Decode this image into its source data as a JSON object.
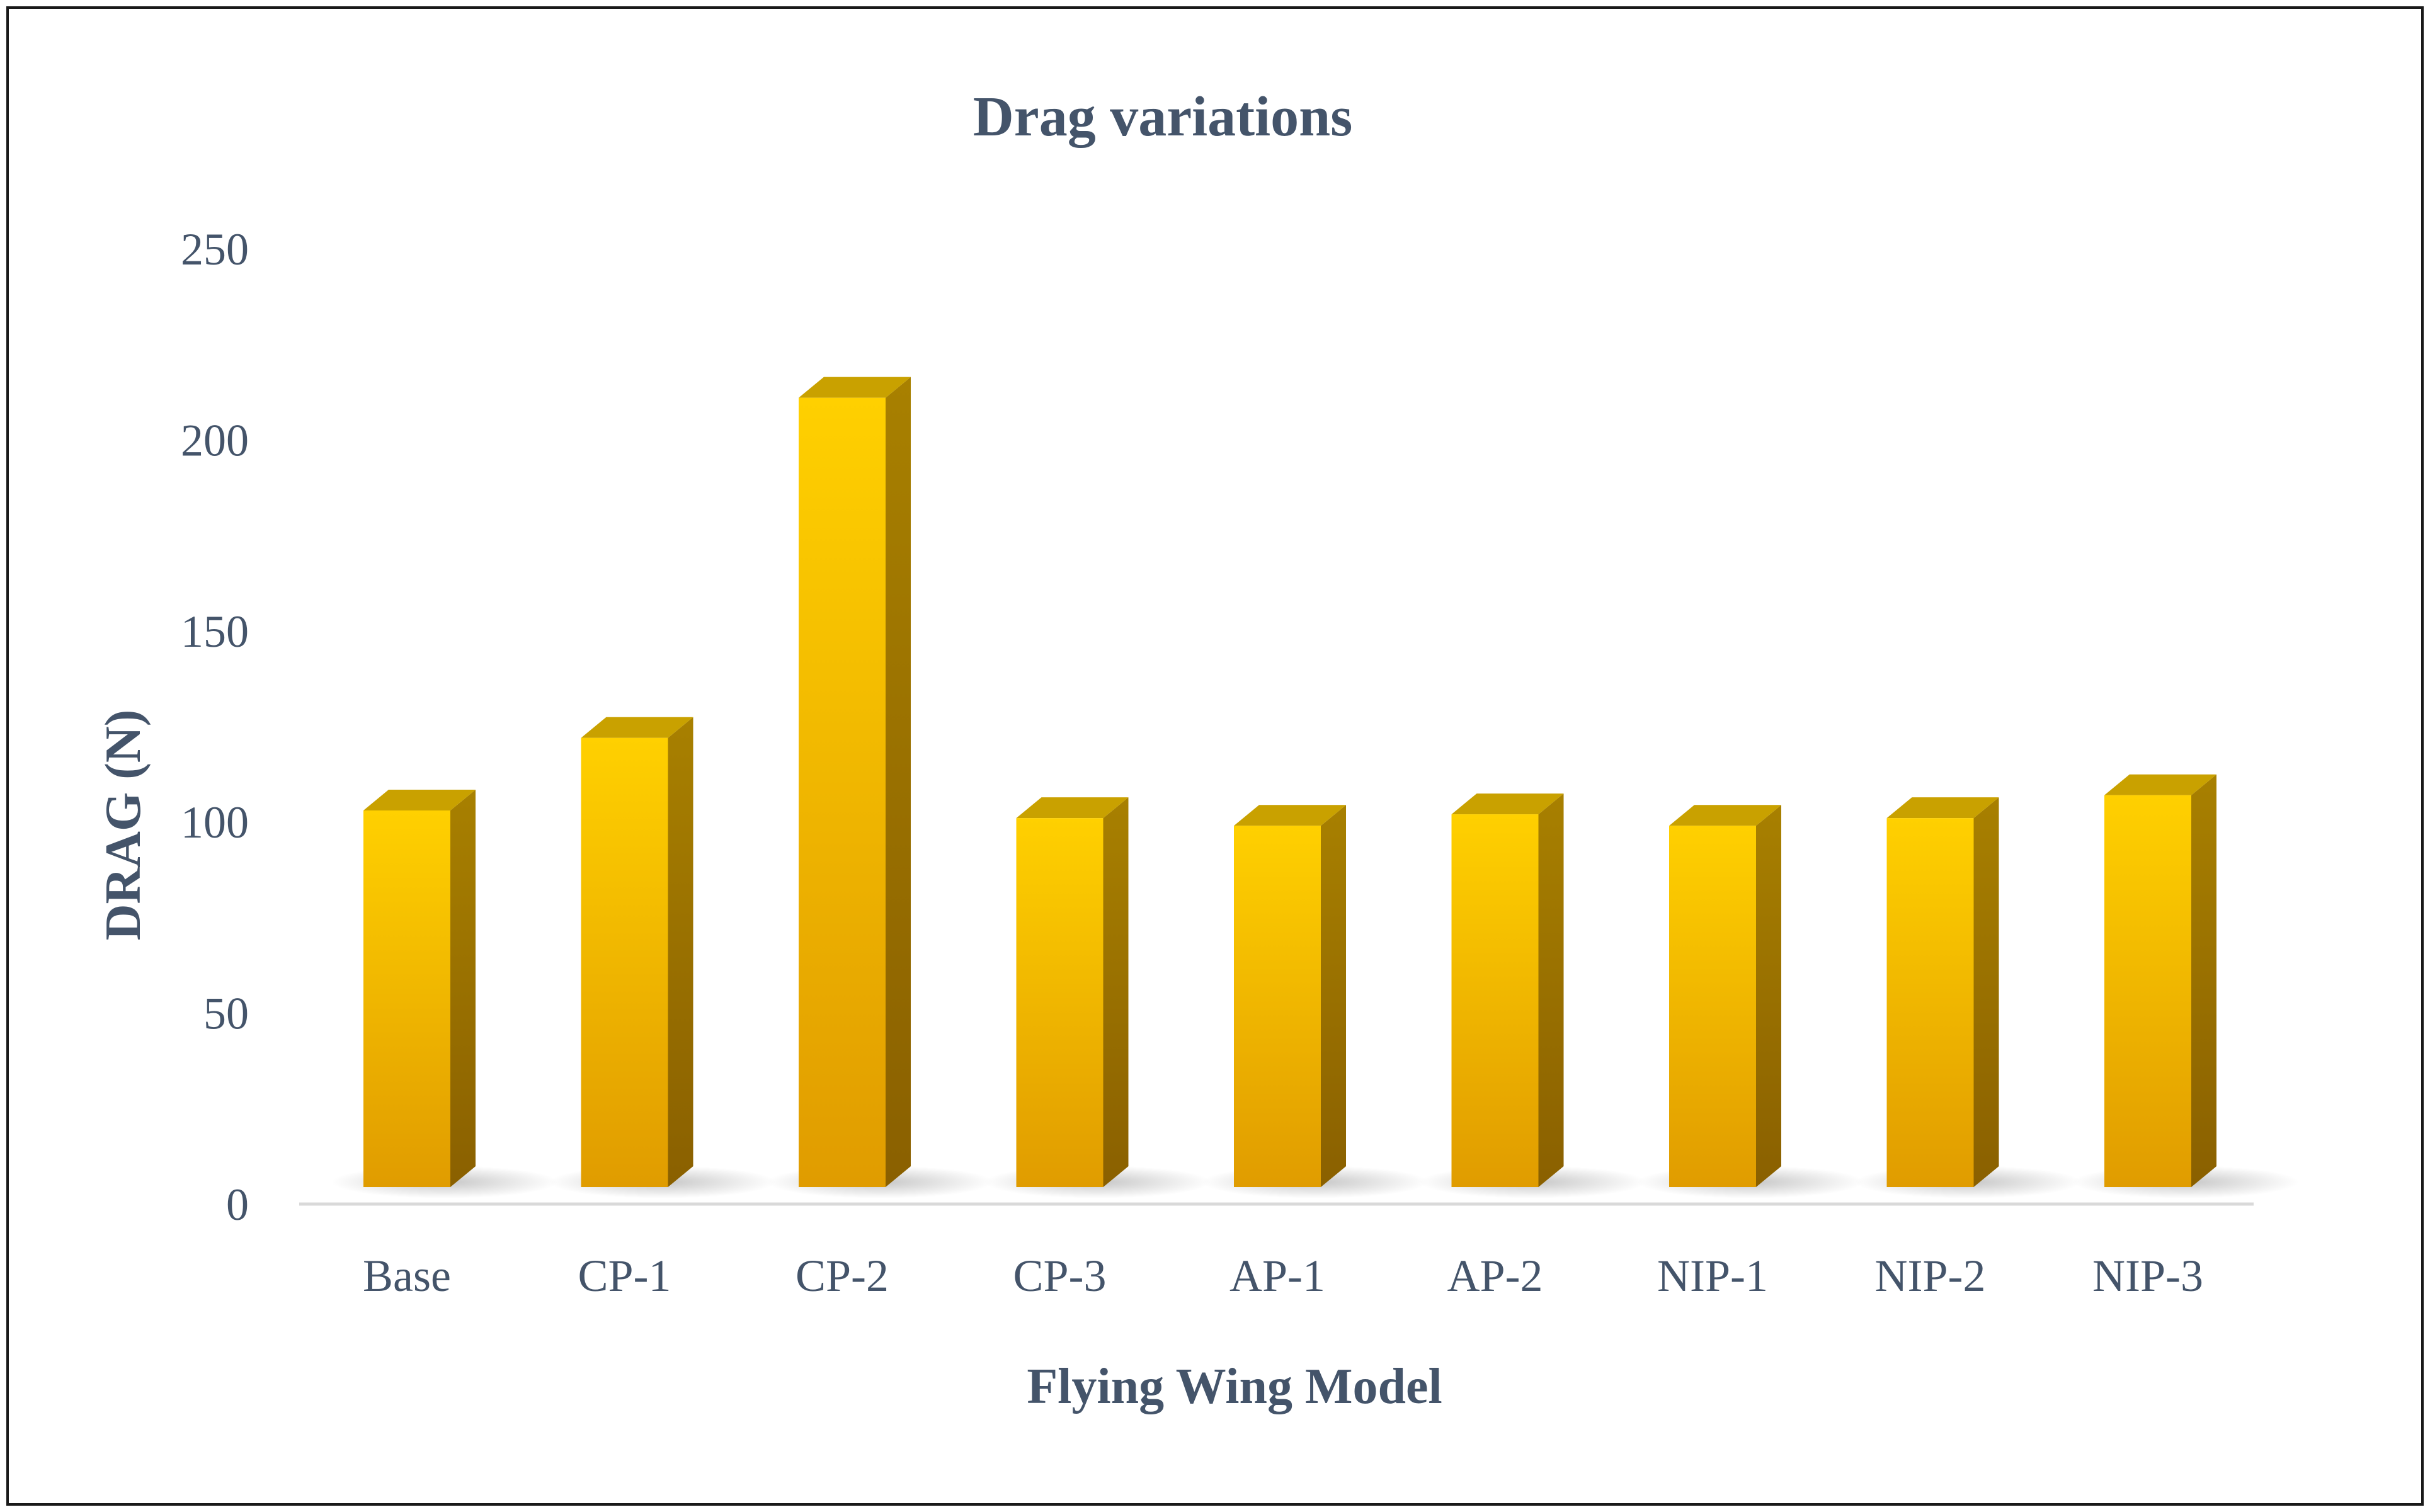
{
  "chart_data": {
    "type": "bar",
    "style": "3d-column",
    "title": "Drag variations",
    "xlabel": "Flying Wing Model",
    "ylabel": "DRAG (N)",
    "categories": [
      "Base",
      "CP-1",
      "CP-2",
      "CP-3",
      "AP-1",
      "AP-2",
      "NIP-1",
      "NIP-2",
      "NIP-3"
    ],
    "values": [
      103,
      122,
      211,
      101,
      99,
      102,
      99,
      101,
      107
    ],
    "ylim": [
      0,
      250
    ],
    "yticks": [
      "0",
      "50",
      "100",
      "150",
      "200",
      "250"
    ],
    "grid": false,
    "legend": "none",
    "colors": {
      "bar_front_top": "#ffd000",
      "bar_front_bottom": "#e09c00",
      "bar_side": "#a07800",
      "bar_top": "#c9a100",
      "text": "#44546a",
      "axis_line": "#d9d9d9",
      "frame": "#1a1a1a"
    }
  }
}
